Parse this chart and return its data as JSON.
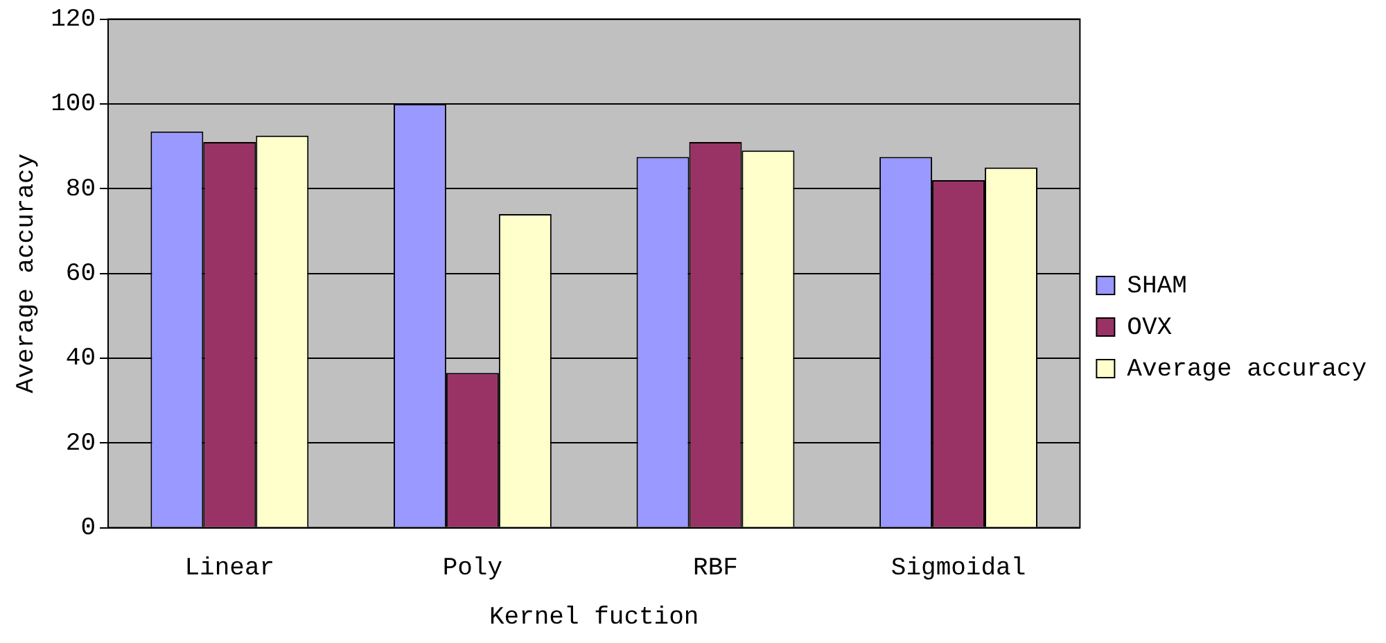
{
  "chart_data": {
    "type": "bar",
    "xlabel": "Kernel fuction",
    "ylabel": "Average accuracy",
    "categories": [
      "Linear",
      "Poly",
      "RBF",
      "Sigmoidal"
    ],
    "series": [
      {
        "name": "SHAM",
        "color": "#9999ff",
        "values": [
          93.5,
          100,
          87.5,
          87.5
        ]
      },
      {
        "name": "OVX",
        "color": "#993366",
        "values": [
          91,
          36.5,
          91,
          82
        ]
      },
      {
        "name": "Average accuracy",
        "color": "#ffffcc",
        "values": [
          92.5,
          74,
          89,
          85
        ]
      }
    ],
    "ylim": [
      0,
      120
    ],
    "yticks": [
      0,
      20,
      40,
      60,
      80,
      100,
      120
    ],
    "grid": "y",
    "legend": "right"
  }
}
